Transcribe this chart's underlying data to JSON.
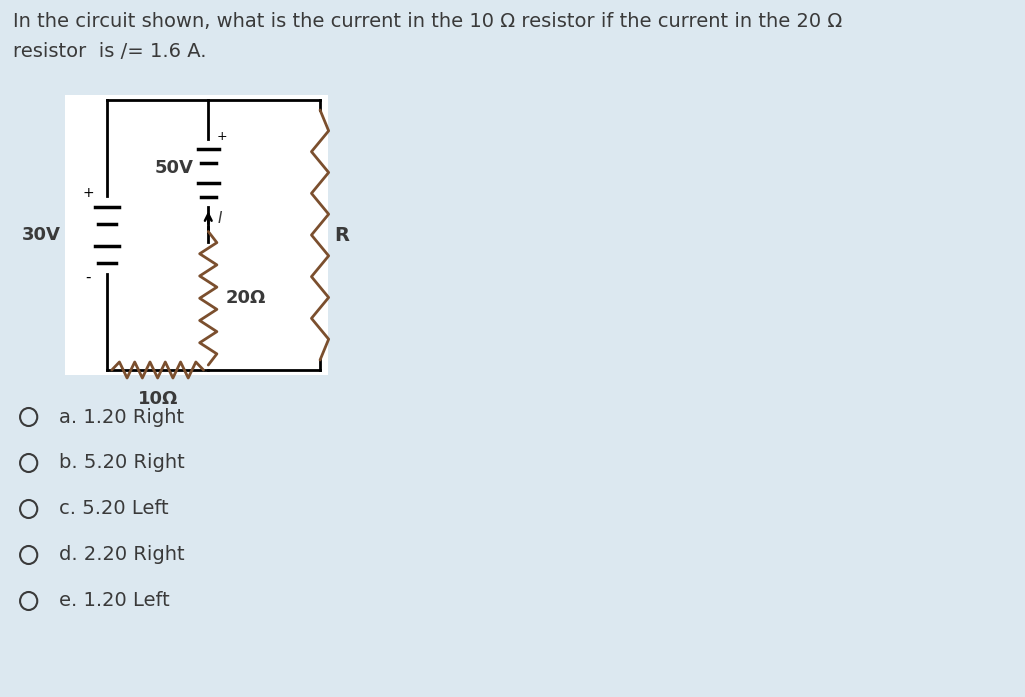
{
  "background_color": "#dce8f0",
  "title_line1": "In the circuit shown, what is the current in the 10 Ω resistor if the current in the 20 Ω",
  "title_line2": "resistor  is /= 1.6 A.",
  "option_texts": [
    "a. 1.20 Right",
    "b. 5.20 Right",
    "c. 5.20 Left",
    "d. 2.20 Right",
    "e. 1.20 Left"
  ],
  "text_color": "#3a3a3a",
  "circuit_line_color": "#000000",
  "resistor_color": "#7B4F2E"
}
